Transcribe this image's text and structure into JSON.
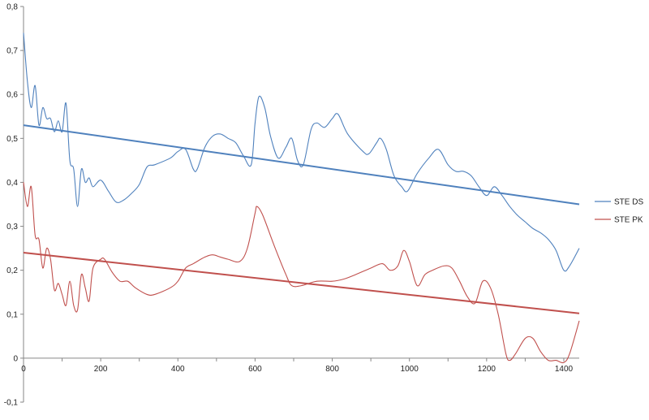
{
  "chart_data": {
    "type": "line",
    "title": "",
    "xlabel": "",
    "ylabel": "",
    "xlim": [
      0,
      1440
    ],
    "ylim": [
      -0.1,
      0.8
    ],
    "x_ticks": [
      0,
      200,
      400,
      600,
      800,
      1000,
      1200,
      1400
    ],
    "x_tick_labels": [
      "0",
      "200",
      "400",
      "600",
      "800",
      "1000",
      "1200",
      "1400"
    ],
    "y_ticks": [
      -0.1,
      0,
      0.1,
      0.2,
      0.3,
      0.4,
      0.5,
      0.6,
      0.7,
      0.8
    ],
    "y_tick_labels": [
      "-0,1",
      "0",
      "0,1",
      "0,2",
      "0,3",
      "0,4",
      "0,5",
      "0,6",
      "0,7",
      "0,8"
    ],
    "grid": false,
    "legend_position": "right",
    "series": [
      {
        "name": "STE DS",
        "color": "#4f81bd",
        "points": [
          [
            0,
            0.74
          ],
          [
            10,
            0.63
          ],
          [
            20,
            0.57
          ],
          [
            30,
            0.62
          ],
          [
            40,
            0.53
          ],
          [
            50,
            0.57
          ],
          [
            60,
            0.545
          ],
          [
            70,
            0.545
          ],
          [
            80,
            0.515
          ],
          [
            90,
            0.54
          ],
          [
            100,
            0.515
          ],
          [
            110,
            0.58
          ],
          [
            120,
            0.45
          ],
          [
            130,
            0.43
          ],
          [
            140,
            0.345
          ],
          [
            150,
            0.43
          ],
          [
            160,
            0.4
          ],
          [
            170,
            0.41
          ],
          [
            180,
            0.39
          ],
          [
            200,
            0.405
          ],
          [
            220,
            0.38
          ],
          [
            240,
            0.355
          ],
          [
            260,
            0.36
          ],
          [
            280,
            0.375
          ],
          [
            300,
            0.395
          ],
          [
            320,
            0.435
          ],
          [
            340,
            0.44
          ],
          [
            380,
            0.455
          ],
          [
            400,
            0.47
          ],
          [
            420,
            0.475
          ],
          [
            440,
            0.43
          ],
          [
            450,
            0.43
          ],
          [
            470,
            0.48
          ],
          [
            490,
            0.505
          ],
          [
            510,
            0.51
          ],
          [
            530,
            0.5
          ],
          [
            550,
            0.49
          ],
          [
            570,
            0.46
          ],
          [
            590,
            0.44
          ],
          [
            600,
            0.535
          ],
          [
            610,
            0.595
          ],
          [
            625,
            0.57
          ],
          [
            640,
            0.505
          ],
          [
            660,
            0.455
          ],
          [
            680,
            0.48
          ],
          [
            695,
            0.5
          ],
          [
            710,
            0.45
          ],
          [
            725,
            0.44
          ],
          [
            745,
            0.52
          ],
          [
            760,
            0.535
          ],
          [
            780,
            0.525
          ],
          [
            800,
            0.545
          ],
          [
            815,
            0.555
          ],
          [
            840,
            0.51
          ],
          [
            880,
            0.47
          ],
          [
            895,
            0.465
          ],
          [
            915,
            0.49
          ],
          [
            925,
            0.5
          ],
          [
            940,
            0.475
          ],
          [
            960,
            0.415
          ],
          [
            980,
            0.39
          ],
          [
            995,
            0.38
          ],
          [
            1020,
            0.42
          ],
          [
            1050,
            0.455
          ],
          [
            1075,
            0.475
          ],
          [
            1100,
            0.44
          ],
          [
            1120,
            0.425
          ],
          [
            1140,
            0.425
          ],
          [
            1160,
            0.415
          ],
          [
            1180,
            0.39
          ],
          [
            1200,
            0.37
          ],
          [
            1220,
            0.39
          ],
          [
            1240,
            0.37
          ],
          [
            1260,
            0.345
          ],
          [
            1280,
            0.325
          ],
          [
            1300,
            0.31
          ],
          [
            1320,
            0.295
          ],
          [
            1340,
            0.285
          ],
          [
            1360,
            0.27
          ],
          [
            1380,
            0.245
          ],
          [
            1400,
            0.2
          ],
          [
            1415,
            0.21
          ],
          [
            1440,
            0.25
          ]
        ]
      },
      {
        "name": "STE PK",
        "color": "#c0504d",
        "points": [
          [
            0,
            0.4
          ],
          [
            10,
            0.345
          ],
          [
            20,
            0.39
          ],
          [
            30,
            0.28
          ],
          [
            40,
            0.27
          ],
          [
            50,
            0.205
          ],
          [
            60,
            0.25
          ],
          [
            70,
            0.225
          ],
          [
            80,
            0.155
          ],
          [
            90,
            0.17
          ],
          [
            100,
            0.145
          ],
          [
            110,
            0.12
          ],
          [
            120,
            0.175
          ],
          [
            130,
            0.12
          ],
          [
            140,
            0.11
          ],
          [
            150,
            0.19
          ],
          [
            160,
            0.16
          ],
          [
            170,
            0.13
          ],
          [
            180,
            0.205
          ],
          [
            200,
            0.225
          ],
          [
            210,
            0.225
          ],
          [
            230,
            0.195
          ],
          [
            250,
            0.175
          ],
          [
            270,
            0.175
          ],
          [
            290,
            0.16
          ],
          [
            320,
            0.145
          ],
          [
            340,
            0.145
          ],
          [
            380,
            0.16
          ],
          [
            400,
            0.175
          ],
          [
            420,
            0.205
          ],
          [
            440,
            0.215
          ],
          [
            470,
            0.23
          ],
          [
            490,
            0.235
          ],
          [
            510,
            0.23
          ],
          [
            530,
            0.225
          ],
          [
            560,
            0.22
          ],
          [
            580,
            0.25
          ],
          [
            600,
            0.33
          ],
          [
            605,
            0.345
          ],
          [
            620,
            0.325
          ],
          [
            650,
            0.255
          ],
          [
            680,
            0.19
          ],
          [
            695,
            0.165
          ],
          [
            720,
            0.165
          ],
          [
            760,
            0.175
          ],
          [
            800,
            0.175
          ],
          [
            830,
            0.18
          ],
          [
            860,
            0.19
          ],
          [
            900,
            0.205
          ],
          [
            930,
            0.215
          ],
          [
            950,
            0.2
          ],
          [
            970,
            0.21
          ],
          [
            985,
            0.245
          ],
          [
            1000,
            0.22
          ],
          [
            1020,
            0.165
          ],
          [
            1040,
            0.19
          ],
          [
            1060,
            0.2
          ],
          [
            1090,
            0.21
          ],
          [
            1110,
            0.205
          ],
          [
            1130,
            0.175
          ],
          [
            1150,
            0.14
          ],
          [
            1170,
            0.125
          ],
          [
            1190,
            0.175
          ],
          [
            1210,
            0.16
          ],
          [
            1230,
            0.1
          ],
          [
            1250,
            0.01
          ],
          [
            1260,
            -0.005
          ],
          [
            1275,
            0.01
          ],
          [
            1300,
            0.045
          ],
          [
            1320,
            0.045
          ],
          [
            1340,
            0.015
          ],
          [
            1360,
            -0.005
          ],
          [
            1380,
            -0.005
          ],
          [
            1400,
            -0.01
          ],
          [
            1415,
            0.01
          ],
          [
            1440,
            0.085
          ]
        ]
      }
    ],
    "trendlines": [
      {
        "series": "STE DS",
        "color": "#4f81bd",
        "start": [
          0,
          0.53
        ],
        "end": [
          1440,
          0.35
        ]
      },
      {
        "series": "STE PK",
        "color": "#c0504d",
        "start": [
          0,
          0.24
        ],
        "end": [
          1440,
          0.102
        ]
      }
    ]
  }
}
